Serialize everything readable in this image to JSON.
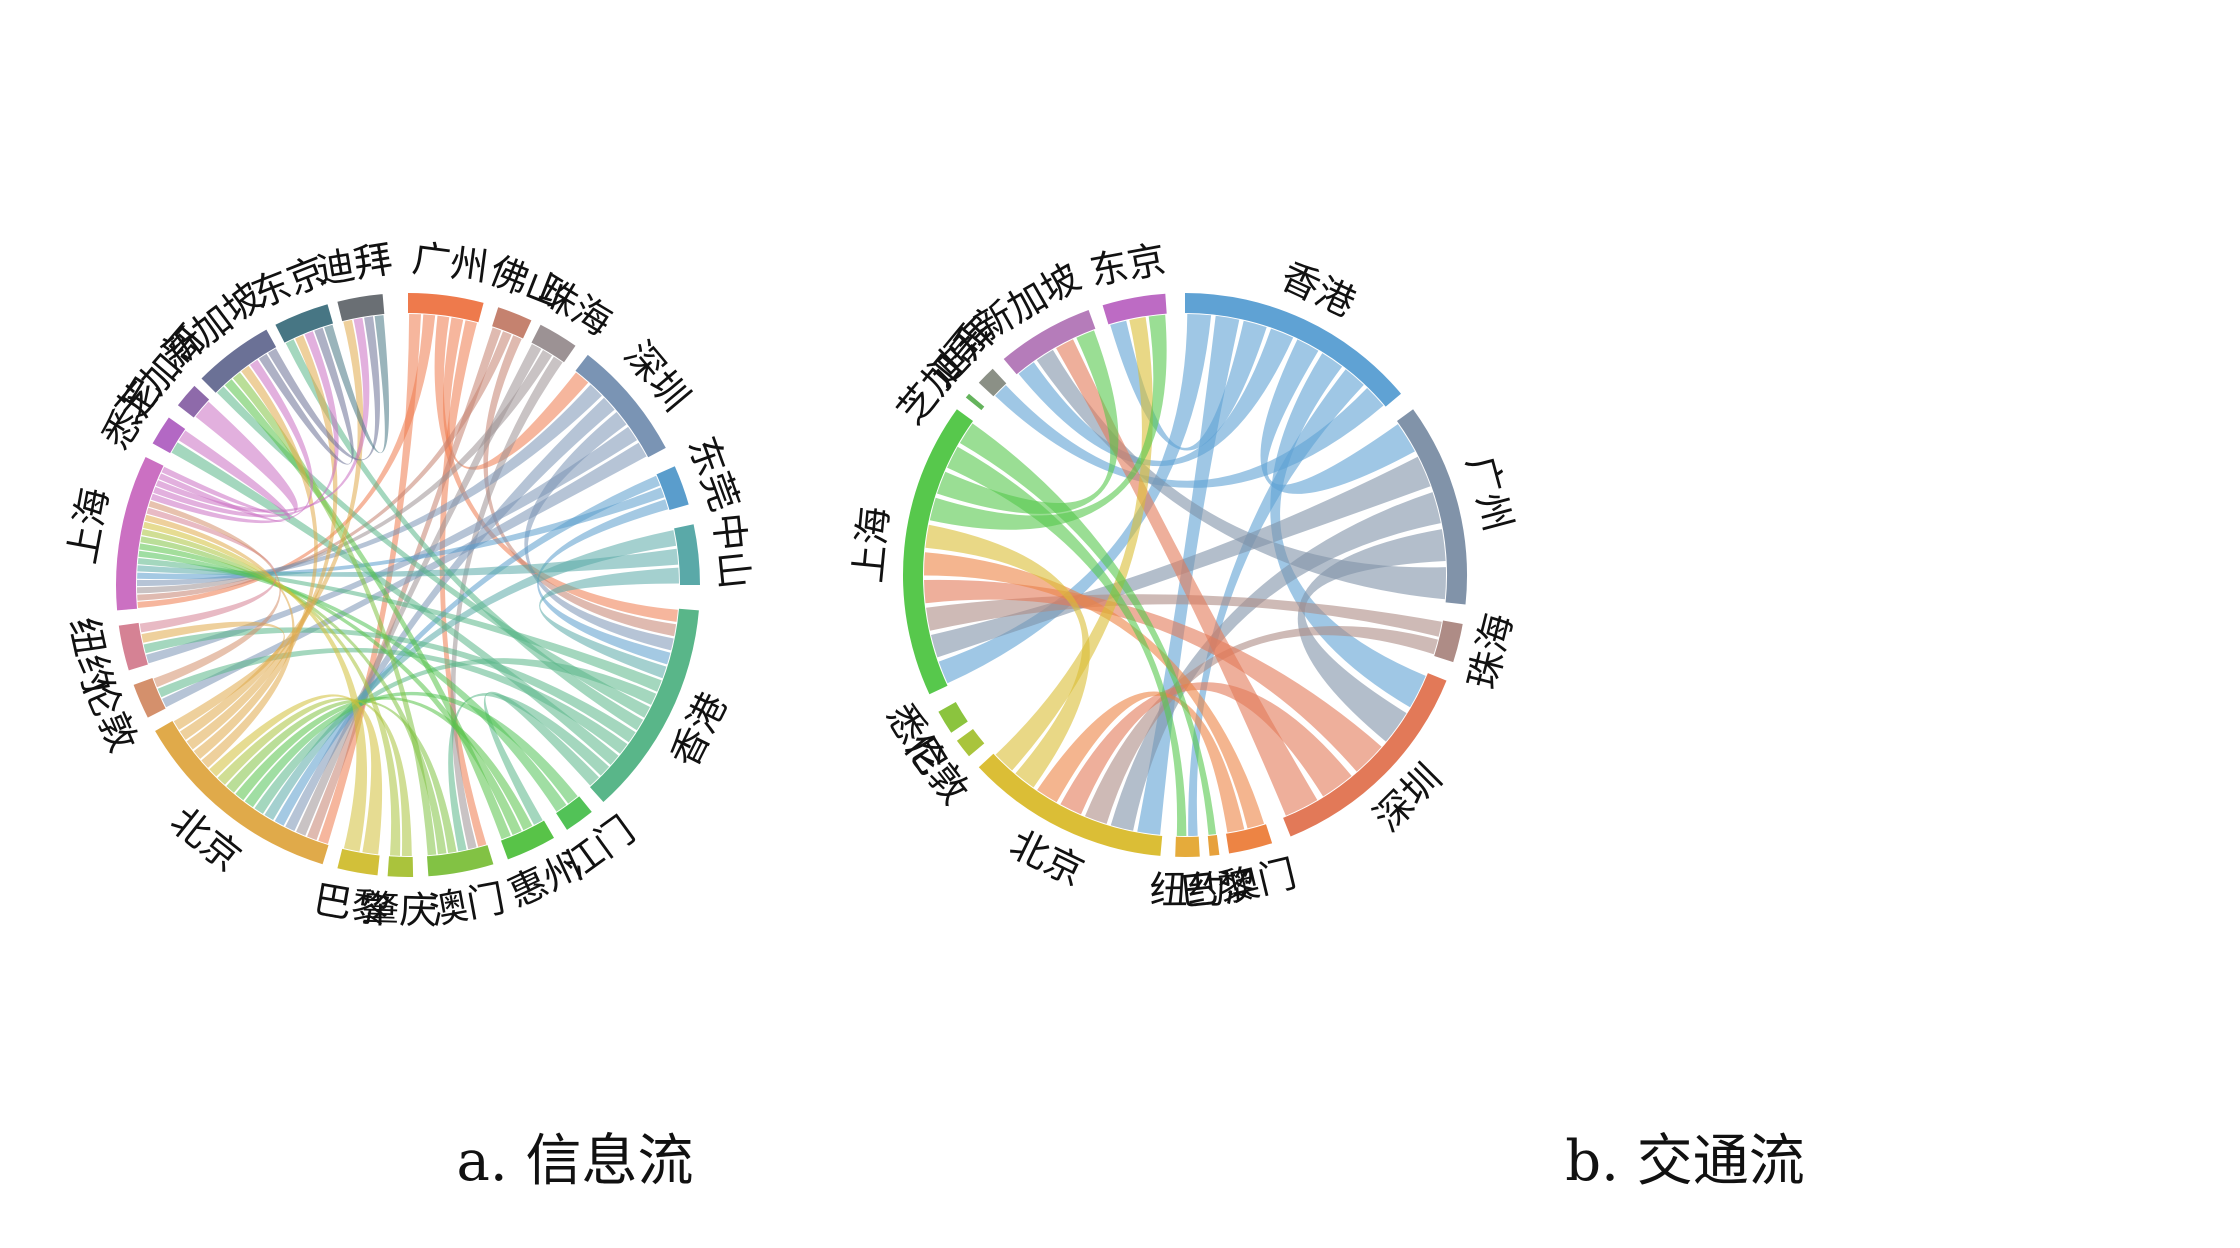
{
  "diagrams": [
    {
      "id": "info",
      "caption": "a. 信息流",
      "segments": [
        {
          "label": "广州",
          "color": "#ee7a4c",
          "start": 0,
          "end": 15
        },
        {
          "label": "佛山",
          "color": "#c5826f",
          "start": 18,
          "end": 25
        },
        {
          "label": "珠海",
          "color": "#9c9294",
          "start": 27,
          "end": 35
        },
        {
          "label": "深圳",
          "color": "#7a94b4",
          "start": 38,
          "end": 62
        },
        {
          "label": "东莞",
          "color": "#5a9dcc",
          "start": 66,
          "end": 74
        },
        {
          "label": "中山",
          "color": "#5aa9a8",
          "start": 78,
          "end": 90
        },
        {
          "label": "香港",
          "color": "#59b689",
          "start": 95,
          "end": 138
        },
        {
          "label": "江门",
          "color": "#52c257",
          "start": 141,
          "end": 147
        },
        {
          "label": "惠州",
          "color": "#58c348",
          "start": 150,
          "end": 160
        },
        {
          "label": "澳门",
          "color": "#82c244",
          "start": 163,
          "end": 176
        },
        {
          "label": "肇庆",
          "color": "#aac33c",
          "start": 179,
          "end": 184
        },
        {
          "label": "巴黎",
          "color": "#d2c039",
          "start": 186,
          "end": 194
        },
        {
          "label": "北京",
          "color": "#e0aa4a",
          "start": 197,
          "end": 240
        },
        {
          "label": "伦敦",
          "color": "#d4906c",
          "start": 243,
          "end": 250
        },
        {
          "label": "纽约",
          "color": "#d58294",
          "start": 253,
          "end": 262
        },
        {
          "label": "上海",
          "color": "#cb70c2",
          "start": 265,
          "end": 296
        },
        {
          "label": "悉尼",
          "color": "#b368c4",
          "start": 299,
          "end": 305
        },
        {
          "label": "芝加哥",
          "color": "#8e6aaa",
          "start": 308,
          "end": 313
        },
        {
          "label": "新加坡",
          "color": "#6b7196",
          "start": 315,
          "end": 331
        },
        {
          "label": "东京",
          "color": "#477684",
          "start": 333,
          "end": 344
        },
        {
          "label": "迪拜",
          "color": "#6a6f74",
          "start": 346,
          "end": 355
        }
      ],
      "ribbons": [
        [
          "广州",
          "北京"
        ],
        [
          "广州",
          "上海"
        ],
        [
          "广州",
          "香港"
        ],
        [
          "广州",
          "深圳"
        ],
        [
          "广州",
          "澳门"
        ],
        [
          "佛山",
          "北京"
        ],
        [
          "佛山",
          "上海"
        ],
        [
          "佛山",
          "香港"
        ],
        [
          "珠海",
          "北京"
        ],
        [
          "珠海",
          "上海"
        ],
        [
          "珠海",
          "澳门"
        ],
        [
          "深圳",
          "上海"
        ],
        [
          "深圳",
          "北京"
        ],
        [
          "深圳",
          "香港"
        ],
        [
          "深圳",
          "纽约"
        ],
        [
          "深圳",
          "伦敦"
        ],
        [
          "东莞",
          "北京"
        ],
        [
          "东莞",
          "上海"
        ],
        [
          "东莞",
          "香港"
        ],
        [
          "中山",
          "北京"
        ],
        [
          "中山",
          "上海"
        ],
        [
          "中山",
          "香港"
        ],
        [
          "香港",
          "上海"
        ],
        [
          "香港",
          "北京"
        ],
        [
          "香港",
          "新加坡"
        ],
        [
          "香港",
          "东京"
        ],
        [
          "香港",
          "纽约"
        ],
        [
          "香港",
          "伦敦"
        ],
        [
          "香港",
          "悉尼"
        ],
        [
          "香港",
          "澳门"
        ],
        [
          "香港",
          "惠州"
        ],
        [
          "江门",
          "北京"
        ],
        [
          "江门",
          "上海"
        ],
        [
          "惠州",
          "北京"
        ],
        [
          "惠州",
          "上海"
        ],
        [
          "惠州",
          "新加坡"
        ],
        [
          "澳门",
          "北京"
        ],
        [
          "澳门",
          "上海"
        ],
        [
          "澳门",
          "新加坡"
        ],
        [
          "肇庆",
          "北京"
        ],
        [
          "肇庆",
          "上海"
        ],
        [
          "巴黎",
          "北京"
        ],
        [
          "巴黎",
          "上海"
        ],
        [
          "北京",
          "上海"
        ],
        [
          "北京",
          "新加坡"
        ],
        [
          "北京",
          "东京"
        ],
        [
          "北京",
          "迪拜"
        ],
        [
          "北京",
          "纽约"
        ],
        [
          "纽约",
          "上海"
        ],
        [
          "伦敦",
          "上海"
        ],
        [
          "上海",
          "新加坡"
        ],
        [
          "上海",
          "东京"
        ],
        [
          "上海",
          "迪拜"
        ],
        [
          "上海",
          "悉尼"
        ],
        [
          "上海",
          "芝加哥"
        ],
        [
          "新加坡",
          "东京"
        ],
        [
          "新加坡",
          "迪拜"
        ],
        [
          "东京",
          "迪拜"
        ]
      ]
    },
    {
      "id": "traffic",
      "caption": "b. 交通流",
      "segments": [
        {
          "label": "香港",
          "color": "#5fa2d4",
          "start": 0,
          "end": 50
        },
        {
          "label": "广州",
          "color": "#8193a9",
          "start": 54,
          "end": 96
        },
        {
          "label": "珠海",
          "color": "#ae8c86",
          "start": 100,
          "end": 108
        },
        {
          "label": "深圳",
          "color": "#e27958",
          "start": 112,
          "end": 158
        },
        {
          "label": "澳门",
          "color": "#ed8444",
          "start": 162,
          "end": 171
        },
        {
          "label": "巴黎",
          "color": "#e7a13c",
          "start": 173,
          "end": 175
        },
        {
          "label": "纽约",
          "color": "#e5ab3b",
          "start": 177,
          "end": 182
        },
        {
          "label": "北京",
          "color": "#dbbe36",
          "start": 185,
          "end": 227
        },
        {
          "label": "伦敦",
          "color": "#a9c43c",
          "start": 230,
          "end": 234
        },
        {
          "label": "悉尼",
          "color": "#8bc43e",
          "start": 236,
          "end": 241
        },
        {
          "label": "上海",
          "color": "#57c84c",
          "start": 245,
          "end": 306
        },
        {
          "label": "芝加哥",
          "color": "#64b35c",
          "start": 309,
          "end": 310
        },
        {
          "label": "迪拜",
          "color": "#8b9086",
          "start": 313,
          "end": 317
        },
        {
          "label": "新加坡",
          "color": "#b57cba",
          "start": 320,
          "end": 340
        },
        {
          "label": "东京",
          "color": "#bd6bc4",
          "start": 343,
          "end": 356
        }
      ],
      "ribbons": [
        [
          "香港",
          "上海"
        ],
        [
          "香港",
          "北京"
        ],
        [
          "香港",
          "东京"
        ],
        [
          "香港",
          "新加坡"
        ],
        [
          "香港",
          "广州"
        ],
        [
          "香港",
          "深圳"
        ],
        [
          "香港",
          "纽约"
        ],
        [
          "香港",
          "迪拜"
        ],
        [
          "广州",
          "上海"
        ],
        [
          "广州",
          "北京"
        ],
        [
          "广州",
          "深圳"
        ],
        [
          "广州",
          "新加坡"
        ],
        [
          "珠海",
          "上海"
        ],
        [
          "珠海",
          "北京"
        ],
        [
          "深圳",
          "上海"
        ],
        [
          "深圳",
          "北京"
        ],
        [
          "深圳",
          "新加坡"
        ],
        [
          "澳门",
          "上海"
        ],
        [
          "澳门",
          "北京"
        ],
        [
          "北京",
          "上海"
        ],
        [
          "北京",
          "东京"
        ],
        [
          "上海",
          "东京"
        ],
        [
          "上海",
          "新加坡"
        ],
        [
          "上海",
          "纽约"
        ],
        [
          "上海",
          "巴黎"
        ]
      ]
    }
  ]
}
